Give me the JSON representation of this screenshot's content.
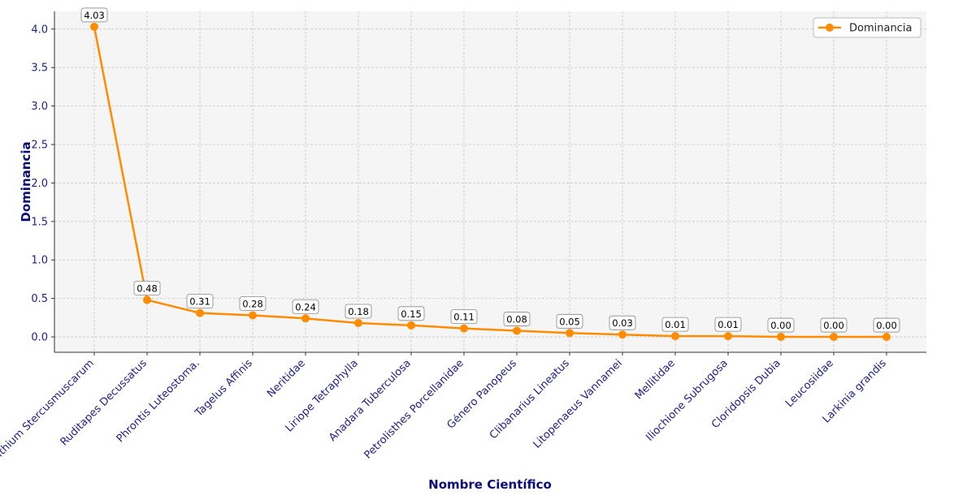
{
  "chart_data": {
    "type": "line",
    "title": "",
    "xlabel": "Nombre Científico",
    "ylabel": "Dominancia",
    "categories": [
      "Cerithium Stercusmuscarum",
      "Ruditapes Decussatus",
      "Phrontis Luteostoma.",
      "Tagelus Affinis",
      "Neritidae",
      "Liriope Tetraphylla",
      "Anadara Tuberculosa",
      "Petrolisthes Porcellanidae",
      "Género Panopeus",
      "Clibanarius Lineatus",
      "Litopenaeus Vannamei",
      "Mellitidae",
      "Iliochione Subrugosa",
      "Cloridopsis Dubia",
      "Leucosiidae",
      "Larkinia grandis"
    ],
    "series": [
      {
        "name": "Dominancia",
        "values": [
          4.03,
          0.48,
          0.31,
          0.28,
          0.24,
          0.18,
          0.15,
          0.11,
          0.08,
          0.05,
          0.03,
          0.01,
          0.01,
          0.0,
          0.0,
          0.0
        ],
        "labels": [
          "4.03",
          "0.48",
          "0.31",
          "0.28",
          "0.24",
          "0.18",
          "0.15",
          "0.11",
          "0.08",
          "0.05",
          "0.03",
          "0.01",
          "0.01",
          "0.00",
          "0.00",
          "0.00"
        ],
        "color": "#ff8c00"
      }
    ],
    "yticks": [
      "0.0",
      "0.5",
      "1.0",
      "1.5",
      "2.0",
      "2.5",
      "3.0",
      "3.5",
      "4.0"
    ],
    "ylim": [
      -0.2,
      4.23
    ],
    "grid": true,
    "legend_position": "top-right",
    "background_color": "#f5f5f5",
    "label_color": "#0b0b7a"
  }
}
